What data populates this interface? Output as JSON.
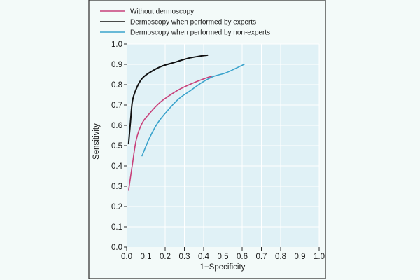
{
  "colors": {
    "page_bg": "#f3faf9",
    "plot_bg": "#e0f1f6",
    "grid": "#ffffff",
    "frame": "#2a2a2a"
  },
  "chart_data": {
    "type": "line",
    "title": "",
    "xlabel": "1−Specificity",
    "ylabel": "Sensitivity",
    "xlim": [
      0.0,
      1.0
    ],
    "ylim": [
      0.0,
      1.0
    ],
    "grid": true,
    "legend_position": "top-left",
    "x_ticks": [
      0.0,
      0.1,
      0.2,
      0.3,
      0.4,
      0.5,
      0.6,
      0.7,
      0.8,
      0.9,
      1.0
    ],
    "y_ticks": [
      0.0,
      0.1,
      0.2,
      0.3,
      0.4,
      0.5,
      0.6,
      0.7,
      0.8,
      0.9,
      1.0
    ],
    "x_tick_labels": [
      "0.0",
      "0.1",
      "0.2",
      "0.3",
      "0.4",
      "0.5",
      "0.6",
      "0.7",
      "0.8",
      "0.9",
      "1.0"
    ],
    "y_tick_labels": [
      "0.0",
      "0.1",
      "0.2",
      "0.3",
      "0.4",
      "0.5",
      "0.6",
      "0.7",
      "0.8",
      "0.9",
      "1.0"
    ],
    "series": [
      {
        "name": "Without dermoscopy",
        "color": "#c8407a",
        "points": [
          [
            0.01,
            0.28
          ],
          [
            0.03,
            0.41
          ],
          [
            0.05,
            0.53
          ],
          [
            0.08,
            0.61
          ],
          [
            0.12,
            0.66
          ],
          [
            0.17,
            0.71
          ],
          [
            0.22,
            0.745
          ],
          [
            0.28,
            0.78
          ],
          [
            0.35,
            0.81
          ],
          [
            0.42,
            0.835
          ],
          [
            0.44,
            0.84
          ]
        ]
      },
      {
        "name": "Dermoscopy when performed by experts",
        "color": "#111111",
        "points": [
          [
            0.01,
            0.51
          ],
          [
            0.02,
            0.62
          ],
          [
            0.03,
            0.72
          ],
          [
            0.05,
            0.78
          ],
          [
            0.08,
            0.83
          ],
          [
            0.12,
            0.86
          ],
          [
            0.18,
            0.89
          ],
          [
            0.25,
            0.91
          ],
          [
            0.32,
            0.93
          ],
          [
            0.38,
            0.94
          ],
          [
            0.42,
            0.945
          ]
        ]
      },
      {
        "name": "Dermoscopy when performed by non-experts",
        "color": "#3aa3cc",
        "points": [
          [
            0.08,
            0.45
          ],
          [
            0.12,
            0.54
          ],
          [
            0.16,
            0.61
          ],
          [
            0.21,
            0.67
          ],
          [
            0.27,
            0.73
          ],
          [
            0.33,
            0.77
          ],
          [
            0.39,
            0.81
          ],
          [
            0.45,
            0.84
          ],
          [
            0.52,
            0.86
          ],
          [
            0.61,
            0.9
          ]
        ]
      }
    ]
  }
}
